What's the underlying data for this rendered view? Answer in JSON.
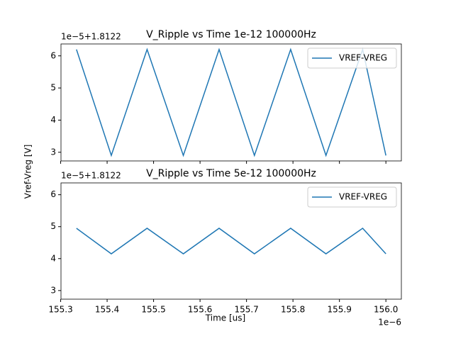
{
  "chart_data": [
    {
      "type": "line",
      "title": "V_Ripple vs Time 1e-12 100000Hz",
      "y_offset": "1e−5+1.8122",
      "y_label": "Vref-Vreg [V]",
      "x": [
        155.334,
        155.409,
        155.486,
        155.564,
        155.641,
        155.717,
        155.795,
        155.871,
        155.95,
        156.0
      ],
      "series": [
        {
          "name": "VREF-VREG",
          "color": "#1f77b4",
          "values": [
            6.2,
            2.9,
            6.2,
            2.9,
            6.2,
            2.9,
            6.2,
            2.9,
            6.2,
            2.9
          ]
        }
      ],
      "xlim": [
        155.3007,
        156.0333
      ],
      "xticks": [
        155.3,
        155.4,
        155.5,
        155.6,
        155.7,
        155.8,
        155.9,
        {
          "value": 156,
          "label": "156.0"
        }
      ],
      "ylim": [
        2.73,
        6.37
      ],
      "yticks": [
        3,
        4,
        5,
        6
      ],
      "legend": "upper right"
    },
    {
      "type": "line",
      "title": "V_Ripple vs Time 5e-12 100000Hz",
      "y_offset": "1e−5+1.8122",
      "x_label": "Time [us]",
      "x_offset": "1e−6",
      "x": [
        155.334,
        155.409,
        155.486,
        155.564,
        155.641,
        155.717,
        155.795,
        155.871,
        155.95,
        156.0
      ],
      "series": [
        {
          "name": "VREF-VREG",
          "color": "#1f77b4",
          "values": [
            4.95,
            4.15,
            4.95,
            4.15,
            4.95,
            4.15,
            4.95,
            4.15,
            4.95,
            4.15
          ]
        }
      ],
      "xlim": [
        155.3007,
        156.0333
      ],
      "xticks": [
        155.3,
        155.4,
        155.5,
        155.6,
        155.7,
        155.8,
        155.9,
        {
          "value": 156,
          "label": "156.0"
        }
      ],
      "ylim": [
        2.73,
        6.37
      ],
      "yticks": [
        3,
        4,
        5,
        6
      ],
      "legend": "upper right"
    }
  ]
}
